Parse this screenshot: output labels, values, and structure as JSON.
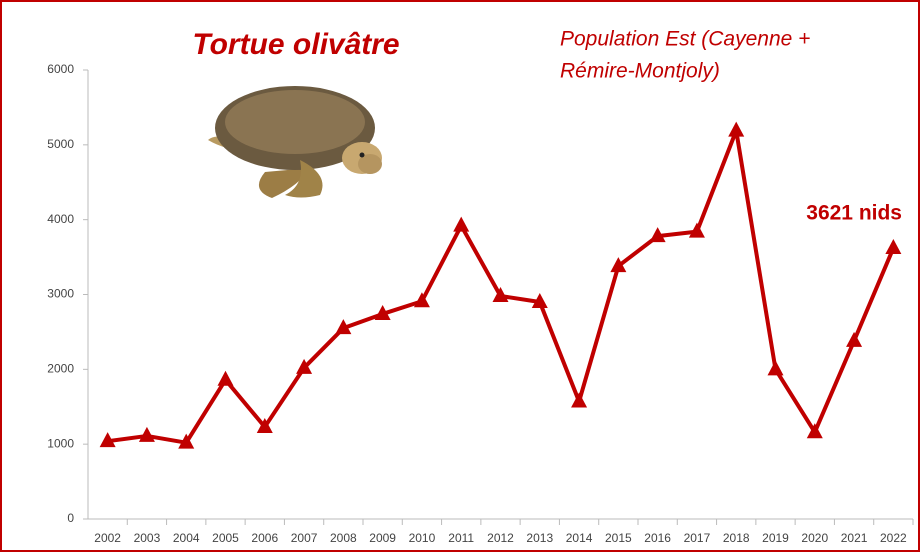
{
  "chart_data": {
    "type": "line",
    "title": "Tortue olivâtre",
    "subtitle_lines": [
      "Population Est (Cayenne +",
      "Rémire-Montjoly)"
    ],
    "annotation": "3621 nids",
    "categories": [
      "2002",
      "2003",
      "2004",
      "2005",
      "2006",
      "2007",
      "2008",
      "2009",
      "2010",
      "2011",
      "2012",
      "2013",
      "2014",
      "2015",
      "2016",
      "2017",
      "2018",
      "2019",
      "2020",
      "2021",
      "2022"
    ],
    "series": [
      {
        "color": "#c00000",
        "values": [
          1040,
          1110,
          1020,
          1860,
          1230,
          2020,
          2550,
          2740,
          2910,
          3920,
          2980,
          2900,
          1570,
          3380,
          3780,
          3840,
          5190,
          2000,
          1160,
          2380,
          3621
        ]
      }
    ],
    "ylim": [
      0,
      6000
    ],
    "yticks": [
      0,
      1000,
      2000,
      3000,
      4000,
      5000,
      6000
    ],
    "grid": false
  }
}
